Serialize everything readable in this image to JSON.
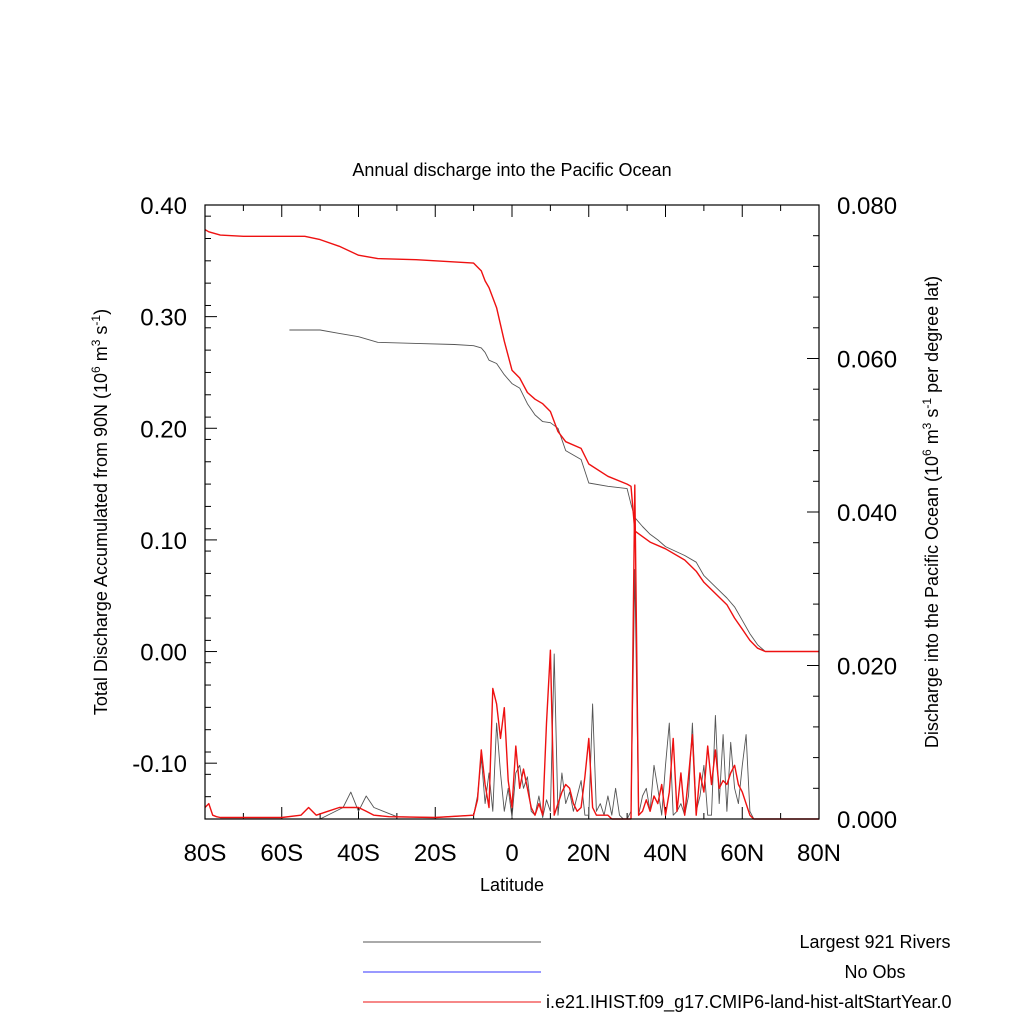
{
  "chart_data": {
    "type": "line",
    "title": "Annual discharge into the Pacific Ocean",
    "xlabel": "Latitude",
    "ylabel_left": "Total Discharge Accumulated from 90N (10^6 m^3 s^-1)",
    "ylabel_right": "Discharge into the Pacific Ocean (10^6 m^3 s^-1 per degree lat)",
    "xlim": [
      -80,
      80
    ],
    "ylim_left": [
      -0.15,
      0.4
    ],
    "ylim_right": [
      0.0,
      0.08
    ],
    "x_ticks": [
      {
        "value": -80,
        "label": "80S"
      },
      {
        "value": -60,
        "label": "60S"
      },
      {
        "value": -40,
        "label": "40S"
      },
      {
        "value": -20,
        "label": "20S"
      },
      {
        "value": 0,
        "label": "0"
      },
      {
        "value": 20,
        "label": "20N"
      },
      {
        "value": 40,
        "label": "40N"
      },
      {
        "value": 60,
        "label": "60N"
      },
      {
        "value": 80,
        "label": "80N"
      }
    ],
    "y_ticks_left": [
      {
        "value": 0.4,
        "label": "0.40"
      },
      {
        "value": 0.3,
        "label": "0.30"
      },
      {
        "value": 0.2,
        "label": "0.20"
      },
      {
        "value": 0.1,
        "label": "0.10"
      },
      {
        "value": 0.0,
        "label": "0.00"
      },
      {
        "value": -0.1,
        "label": "-0.10"
      }
    ],
    "y_ticks_right": [
      {
        "value": 0.08,
        "label": "0.080"
      },
      {
        "value": 0.06,
        "label": "0.060"
      },
      {
        "value": 0.04,
        "label": "0.040"
      },
      {
        "value": 0.02,
        "label": "0.020"
      },
      {
        "value": 0.0,
        "label": "0.000"
      }
    ],
    "legend_placement": "bottom",
    "series": [
      {
        "name": "Largest 921 Rivers",
        "color": "#555555",
        "axis": "left",
        "kind": "accumulated",
        "x": [
          -58,
          -50,
          -45,
          -40,
          -35,
          -25,
          -15,
          -10,
          -8,
          -7,
          -6,
          -4,
          -2,
          0,
          2,
          4,
          6,
          8,
          10,
          12,
          14,
          18,
          20,
          25,
          30,
          31,
          32,
          34,
          36,
          38,
          40,
          45,
          48,
          50,
          53,
          56,
          58,
          60,
          62,
          64,
          66,
          70,
          80
        ],
        "values": [
          0.288,
          0.288,
          0.285,
          0.282,
          0.277,
          0.276,
          0.275,
          0.274,
          0.272,
          0.268,
          0.261,
          0.258,
          0.248,
          0.24,
          0.236,
          0.222,
          0.212,
          0.206,
          0.205,
          0.2,
          0.18,
          0.172,
          0.151,
          0.148,
          0.146,
          0.132,
          0.12,
          0.112,
          0.105,
          0.1,
          0.094,
          0.086,
          0.08,
          0.068,
          0.058,
          0.048,
          0.04,
          0.028,
          0.016,
          0.006,
          0.0,
          0.0,
          0.0
        ]
      },
      {
        "name": "No Obs",
        "color": "#3333ff",
        "axis": "left",
        "kind": "accumulated",
        "x": [],
        "values": []
      },
      {
        "name": "i.e21.IHIST.f09_g17.CMIP6-land-hist-altStartYear.0",
        "color": "#ee1111",
        "axis": "left",
        "kind": "accumulated",
        "x": [
          -80,
          -79,
          -76,
          -70,
          -60,
          -54,
          -50,
          -45,
          -40,
          -35,
          -25,
          -15,
          -10,
          -8,
          -7,
          -6,
          -4,
          -2,
          0,
          2,
          4,
          6,
          8,
          10,
          12,
          14,
          18,
          20,
          25,
          30,
          31,
          32,
          34,
          36,
          40,
          45,
          48,
          50,
          53,
          56,
          58,
          60,
          62,
          64,
          66,
          70,
          80
        ],
        "values": [
          0.378,
          0.376,
          0.373,
          0.372,
          0.372,
          0.372,
          0.369,
          0.363,
          0.355,
          0.352,
          0.351,
          0.349,
          0.348,
          0.341,
          0.332,
          0.326,
          0.308,
          0.278,
          0.252,
          0.245,
          0.232,
          0.226,
          0.222,
          0.215,
          0.197,
          0.188,
          0.182,
          0.168,
          0.157,
          0.15,
          0.148,
          0.108,
          0.103,
          0.098,
          0.092,
          0.082,
          0.072,
          0.062,
          0.052,
          0.042,
          0.03,
          0.02,
          0.01,
          0.003,
          0.0,
          0.0,
          0.0
        ]
      },
      {
        "name": "Largest 921 Rivers",
        "color": "#555555",
        "axis": "right",
        "kind": "per_degree",
        "x": [
          -58,
          -50,
          -44,
          -42,
          -40,
          -38,
          -36,
          -30,
          -20,
          -10,
          -9,
          -8,
          -7,
          -6,
          -5,
          -4,
          -3,
          -2,
          -1,
          0,
          1,
          2,
          3,
          4,
          5,
          6,
          7,
          8,
          9,
          10,
          11,
          12,
          13,
          14,
          15,
          16,
          17,
          18,
          19,
          20,
          21,
          22,
          23,
          24,
          25,
          26,
          27,
          28,
          29,
          30,
          31,
          32,
          33,
          34,
          35,
          36,
          37,
          38,
          39,
          40,
          41,
          42,
          43,
          44,
          45,
          46,
          47,
          48,
          49,
          50,
          51,
          52,
          53,
          54,
          55,
          56,
          57,
          58,
          59,
          60,
          61,
          62,
          63,
          64,
          65,
          66,
          70,
          80
        ],
        "values": [
          0.0,
          0.0,
          0.0015,
          0.0035,
          0.001,
          0.003,
          0.0015,
          0.0003,
          0.0002,
          0.0005,
          0.003,
          0.008,
          0.002,
          0.006,
          0.001,
          0.0125,
          0.006,
          0.001,
          0.004,
          0.0002,
          0.006,
          0.007,
          0.004,
          0.0055,
          0.001,
          0.0005,
          0.003,
          0.0002,
          0.0025,
          0.001,
          0.0215,
          0.0005,
          0.006,
          0.002,
          0.0035,
          0.001,
          0.003,
          0.005,
          0.0005,
          0.0005,
          0.015,
          0.001,
          0.002,
          0.0005,
          0.003,
          0.0005,
          0.004,
          0.0005,
          0.0,
          0.0,
          0.001,
          0.0325,
          0.0005,
          0.003,
          0.004,
          0.001,
          0.007,
          0.004,
          0.0005,
          0.007,
          0.0125,
          0.0005,
          0.001,
          0.002,
          0.0005,
          0.003,
          0.0125,
          0.001,
          0.003,
          0.007,
          0.0005,
          0.0005,
          0.0135,
          0.002,
          0.011,
          0.001,
          0.01,
          0.004,
          0.002,
          0.007,
          0.011,
          0.001,
          0.0,
          0.0,
          0.0,
          0.0,
          0.0,
          0.0
        ]
      },
      {
        "name": "i.e21.IHIST.f09_g17.CMIP6-land-hist-altStartYear.0",
        "color": "#ee1111",
        "axis": "right",
        "kind": "per_degree",
        "x": [
          -80,
          -79,
          -78,
          -77,
          -76,
          -70,
          -60,
          -55,
          -53,
          -51,
          -48,
          -45,
          -42,
          -40,
          -38,
          -36,
          -32,
          -20,
          -10,
          -9,
          -8,
          -7,
          -6,
          -5,
          -4,
          -3,
          -2,
          -1,
          0,
          1,
          2,
          3,
          4,
          5,
          6,
          7,
          8,
          9,
          10,
          11,
          12,
          13,
          14,
          15,
          16,
          17,
          18,
          19,
          20,
          21,
          22,
          23,
          24,
          25,
          26,
          27,
          28,
          29,
          30,
          31,
          32,
          33,
          34,
          35,
          36,
          37,
          38,
          39,
          40,
          41,
          42,
          43,
          44,
          45,
          46,
          47,
          48,
          49,
          50,
          51,
          52,
          53,
          54,
          55,
          56,
          57,
          58,
          59,
          60,
          61,
          62,
          63,
          64,
          65,
          66,
          70,
          80
        ],
        "values": [
          0.0015,
          0.002,
          0.0005,
          0.0003,
          0.0002,
          0.0002,
          0.0002,
          0.0005,
          0.0015,
          0.0005,
          0.001,
          0.0015,
          0.0015,
          0.0015,
          0.001,
          0.0005,
          0.0003,
          0.0002,
          0.0005,
          0.0025,
          0.009,
          0.0045,
          0.0015,
          0.017,
          0.015,
          0.0105,
          0.0145,
          0.005,
          0.0015,
          0.0095,
          0.004,
          0.0065,
          0.004,
          0.0015,
          0.0005,
          0.002,
          0.0005,
          0.0125,
          0.022,
          0.0005,
          0.002,
          0.0035,
          0.0045,
          0.004,
          0.002,
          0.001,
          0.0015,
          0.0055,
          0.0105,
          0.0015,
          0.0005,
          0.0005,
          0.0005,
          0.0005,
          0.0,
          0.0,
          0.0,
          0.0,
          0.0,
          0.0,
          0.0435,
          0.0005,
          0.001,
          0.0025,
          0.001,
          0.003,
          0.002,
          0.0045,
          0.0005,
          0.0035,
          0.0105,
          0.001,
          0.006,
          0.0005,
          0.0055,
          0.011,
          0.0005,
          0.006,
          0.0035,
          0.0095,
          0.0045,
          0.009,
          0.004,
          0.005,
          0.0045,
          0.006,
          0.007,
          0.0045,
          0.0035,
          0.002,
          0.0005,
          0.0,
          0.0,
          0.0,
          0.0,
          0.0,
          0.0
        ]
      }
    ]
  }
}
